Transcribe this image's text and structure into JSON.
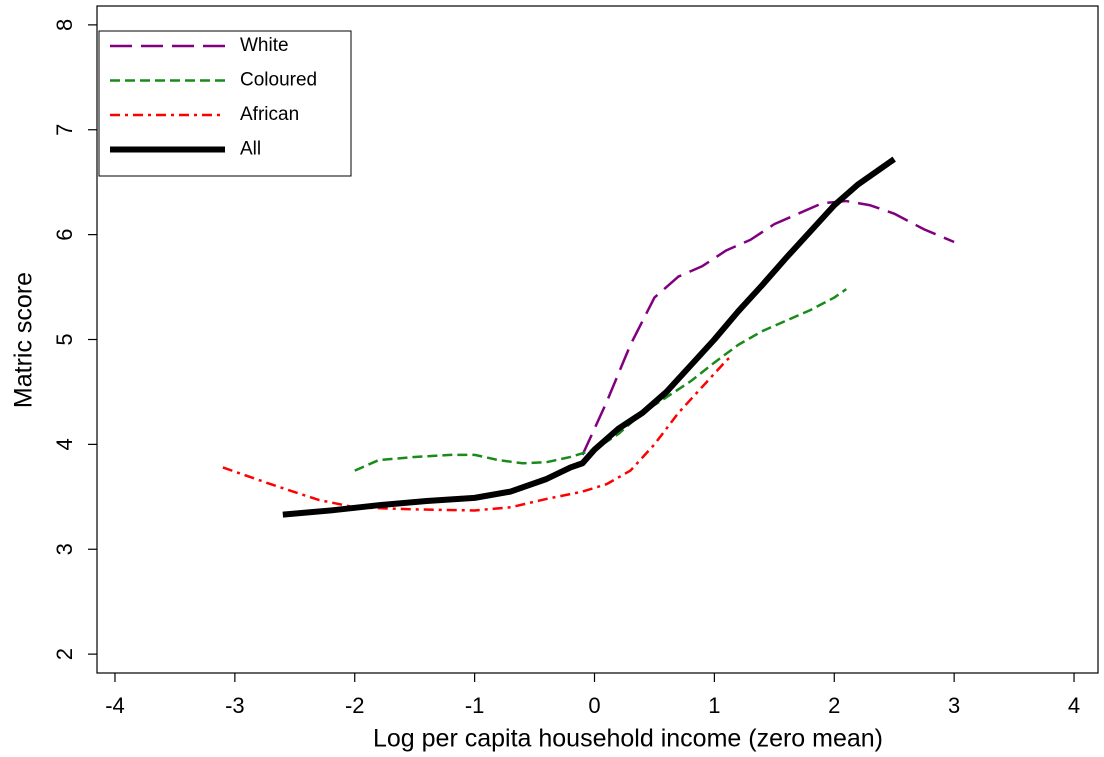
{
  "chart_data": {
    "type": "line",
    "x_label": "Log per capita household income (zero mean)",
    "y_label": "Matric score",
    "xlim": [
      -4.15,
      4.2
    ],
    "ylim": [
      1.82,
      8.18
    ],
    "xticks": [
      -4,
      -3,
      -2,
      -1,
      0,
      1,
      2,
      3,
      4
    ],
    "yticks": [
      2,
      3,
      4,
      5,
      6,
      7,
      8
    ],
    "legend": "top-left",
    "series": [
      {
        "name": "White",
        "color": "#800080",
        "style": "longdash",
        "x": [
          -0.1,
          0.1,
          0.3,
          0.5,
          0.7,
          0.9,
          1.1,
          1.3,
          1.5,
          1.7,
          1.9,
          2.1,
          2.3,
          2.5,
          2.75,
          3.0
        ],
        "values": [
          3.9,
          4.4,
          4.95,
          5.4,
          5.6,
          5.7,
          5.85,
          5.95,
          6.1,
          6.2,
          6.3,
          6.32,
          6.28,
          6.2,
          6.05,
          5.93
        ]
      },
      {
        "name": "Coloured",
        "color": "#1a8a1a",
        "style": "dash",
        "x": [
          -2,
          -1.8,
          -1.5,
          -1.2,
          -1,
          -0.8,
          -0.6,
          -0.4,
          -0.2,
          0,
          0.2,
          0.4,
          0.6,
          0.8,
          1.0,
          1.2,
          1.4,
          1.6,
          1.8,
          2.0,
          2.1
        ],
        "values": [
          3.75,
          3.85,
          3.88,
          3.9,
          3.9,
          3.85,
          3.82,
          3.83,
          3.88,
          3.95,
          4.1,
          4.3,
          4.45,
          4.6,
          4.78,
          4.95,
          5.08,
          5.18,
          5.28,
          5.4,
          5.48
        ]
      },
      {
        "name": "African",
        "color": "#ff0000",
        "style": "dashdot",
        "x": [
          -3.1,
          -2.7,
          -2.3,
          -2,
          -1.5,
          -1,
          -0.7,
          -0.4,
          -0.1,
          0.1,
          0.3,
          0.5,
          0.7,
          0.9,
          1.1,
          1.15
        ],
        "values": [
          3.78,
          3.62,
          3.47,
          3.4,
          3.38,
          3.37,
          3.4,
          3.48,
          3.55,
          3.62,
          3.75,
          4.0,
          4.3,
          4.55,
          4.8,
          4.85
        ]
      },
      {
        "name": "All",
        "color": "#000000",
        "style": "solid",
        "x": [
          -2.6,
          -2.2,
          -1.8,
          -1.4,
          -1,
          -0.7,
          -0.4,
          -0.2,
          -0.1,
          0,
          0.2,
          0.4,
          0.6,
          0.8,
          1.0,
          1.2,
          1.4,
          1.6,
          1.8,
          2.0,
          2.2,
          2.5
        ],
        "values": [
          3.33,
          3.37,
          3.42,
          3.46,
          3.49,
          3.55,
          3.67,
          3.78,
          3.82,
          3.95,
          4.15,
          4.3,
          4.5,
          4.75,
          5.0,
          5.27,
          5.52,
          5.78,
          6.03,
          6.28,
          6.48,
          6.72
        ]
      }
    ]
  }
}
